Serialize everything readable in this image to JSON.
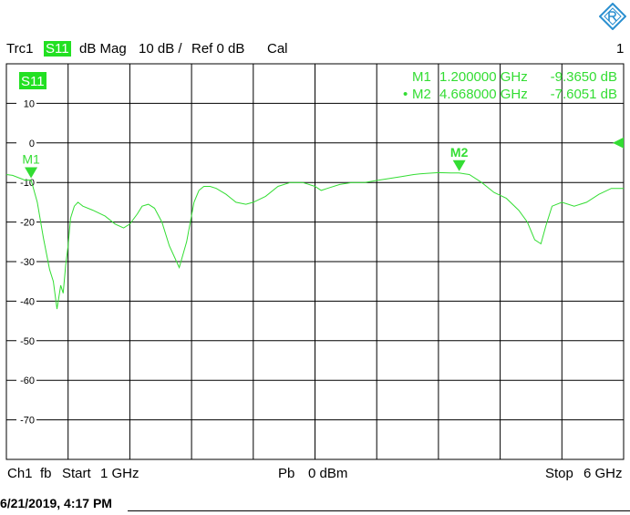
{
  "header": {
    "trace": "Trc1",
    "param": "S11",
    "format": "dB Mag",
    "scale": "10 dB /",
    "ref": "Ref 0 dB",
    "cal": "Cal",
    "channel_index": "1"
  },
  "logo": {
    "icon": "rohde-schwarz-logo-icon",
    "color": "#2a8fd0"
  },
  "colors": {
    "trace": "#33dd33",
    "grid": "#000000",
    "badge": "#22e022"
  },
  "markers": {
    "m1": {
      "label": "M1",
      "freq": "1.200000 GHz",
      "value": "-9.3650 dB",
      "active": false
    },
    "m2": {
      "label": "M2",
      "freq": "4.668000 GHz",
      "value": "-7.6051 dB",
      "active": true
    }
  },
  "chart_data": {
    "type": "line",
    "trace_label": "S11",
    "xlim": [
      1,
      6
    ],
    "ylim": [
      -80,
      20
    ],
    "ylabel": "",
    "xlabel": "",
    "grid": true,
    "yticks": [
      {
        "v": 10,
        "label": "10"
      },
      {
        "v": 0,
        "label": "0"
      },
      {
        "v": -10,
        "label": "-10"
      },
      {
        "v": -20,
        "label": "-20"
      },
      {
        "v": -30,
        "label": "-30"
      },
      {
        "v": -40,
        "label": "-40"
      },
      {
        "v": -50,
        "label": "-50"
      },
      {
        "v": -60,
        "label": "-60"
      },
      {
        "v": -70,
        "label": "-70"
      }
    ],
    "ref_level": 0,
    "series": [
      {
        "x": [
          1.0,
          1.05,
          1.1,
          1.15,
          1.2,
          1.25,
          1.3,
          1.35,
          1.38,
          1.41,
          1.44,
          1.46,
          1.48,
          1.5,
          1.52,
          1.55,
          1.58,
          1.62,
          1.7,
          1.8,
          1.88,
          1.95,
          2.0,
          2.06,
          2.1,
          2.15,
          2.2,
          2.26,
          2.32,
          2.4,
          2.46,
          2.52,
          2.56,
          2.6,
          2.65,
          2.7,
          2.78,
          2.86,
          2.94,
          3.0,
          3.1,
          3.2,
          3.3,
          3.4,
          3.5,
          3.55,
          3.6,
          3.7,
          3.8,
          3.9,
          4.0,
          4.1,
          4.2,
          4.3,
          4.35,
          4.4,
          4.5,
          4.6,
          4.668,
          4.75,
          4.85,
          4.95,
          5.05,
          5.15,
          5.22,
          5.28,
          5.33,
          5.37,
          5.42,
          5.5,
          5.6,
          5.7,
          5.8,
          5.9,
          6.0
        ],
        "y": [
          -8.0,
          -8.2,
          -8.8,
          -9.4,
          -9.37,
          -15.0,
          -24.0,
          -32.0,
          -35.0,
          -42.0,
          -36.0,
          -38.0,
          -31.0,
          -26.0,
          -19.0,
          -16.0,
          -15.0,
          -16.0,
          -17.0,
          -18.5,
          -20.5,
          -21.5,
          -20.5,
          -18.0,
          -16.0,
          -15.5,
          -16.5,
          -20.0,
          -26.0,
          -31.5,
          -25.0,
          -15.0,
          -12.0,
          -11.0,
          -11.0,
          -11.5,
          -13.0,
          -15.0,
          -15.5,
          -15.0,
          -13.5,
          -11.0,
          -10.0,
          -10.0,
          -11.0,
          -12.0,
          -11.5,
          -10.5,
          -10.0,
          -10.0,
          -9.5,
          -9.0,
          -8.5,
          -8.0,
          -7.8,
          -7.7,
          -7.5,
          -7.6,
          -7.6,
          -8.0,
          -10.0,
          -12.5,
          -14.0,
          -17.0,
          -20.0,
          -24.5,
          -25.5,
          -21.0,
          -16.0,
          -15.0,
          -16.0,
          -15.0,
          -13.0,
          -11.5,
          -11.5
        ]
      }
    ]
  },
  "footer": {
    "channel": "Ch1",
    "mode": "fb",
    "start_label": "Start",
    "start_value": "1 GHz",
    "power_label": "Pb",
    "power_value": "0 dBm",
    "stop_label": "Stop",
    "stop_value": "6 GHz"
  },
  "timestamp": "6/21/2019, 4:17 PM"
}
